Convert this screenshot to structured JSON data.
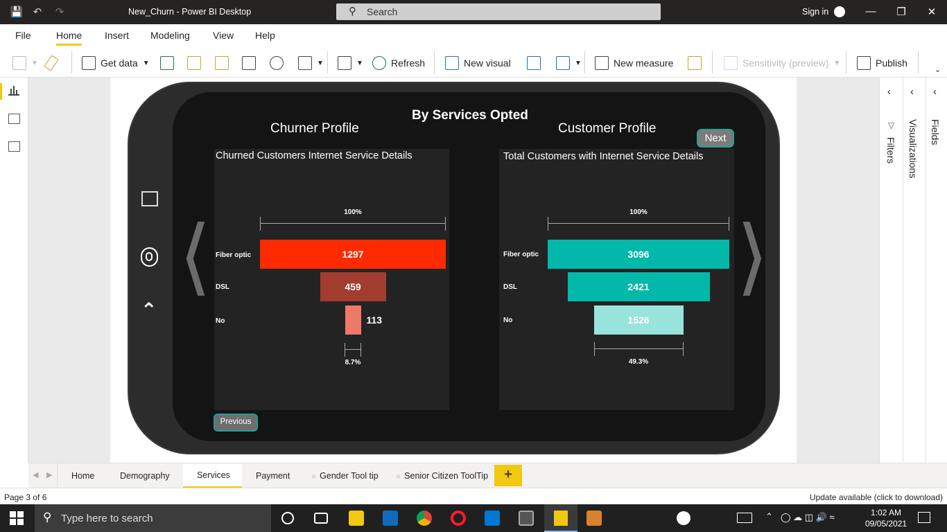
{
  "titlebar": {
    "app_title": "New_Churn - Power BI Desktop",
    "search_label": "Search",
    "signin": "Sign in"
  },
  "menu": {
    "tabs": [
      "File",
      "Home",
      "Insert",
      "Modeling",
      "View",
      "Help"
    ],
    "active": "Home"
  },
  "ribbon": {
    "get_data": "Get data",
    "refresh": "Refresh",
    "new_visual": "New visual",
    "new_measure": "New measure",
    "sensitivity": "Sensitivity (preview)",
    "publish": "Publish"
  },
  "report": {
    "main_title": "By Services Opted",
    "left_title": "Churner Profile",
    "right_title": "Customer Profile",
    "next_button": "Next",
    "previous_button": "Previous"
  },
  "chart_data": [
    {
      "type": "bar",
      "subtype": "funnel",
      "title": "Churned Customers Internet Service Details",
      "categories": [
        "Fiber optic",
        "DSL",
        "No"
      ],
      "values": [
        1297,
        459,
        113
      ],
      "top_percent_label": "100%",
      "bottom_percent_label": "8.7%",
      "colors": [
        "#ff2a00",
        "#a23c2e",
        "#f07868"
      ]
    },
    {
      "type": "bar",
      "subtype": "funnel",
      "title": "Total Customers with Internet Service Details",
      "categories": [
        "Fiber optic",
        "DSL",
        "No"
      ],
      "values": [
        3096,
        2421,
        1526
      ],
      "top_percent_label": "100%",
      "bottom_percent_label": "49.3%",
      "colors": [
        "#01b8aa",
        "#01b8aa",
        "#99e3dd"
      ]
    }
  ],
  "panes": {
    "filters": "Filters",
    "visualizations": "Visualizations",
    "fields": "Fields"
  },
  "pagetabs": [
    "Home",
    "Demography",
    "Services",
    "Payment",
    "Gender Tool tip",
    "Senior Citizen ToolTip"
  ],
  "active_page": "Services",
  "add_page": "+",
  "status": {
    "page_info": "Page 3 of 6",
    "update": "Update available (click to download)"
  },
  "taskbar": {
    "search_placeholder": "Type here to search",
    "time": "1:02 AM",
    "date": "09/05/2021"
  }
}
